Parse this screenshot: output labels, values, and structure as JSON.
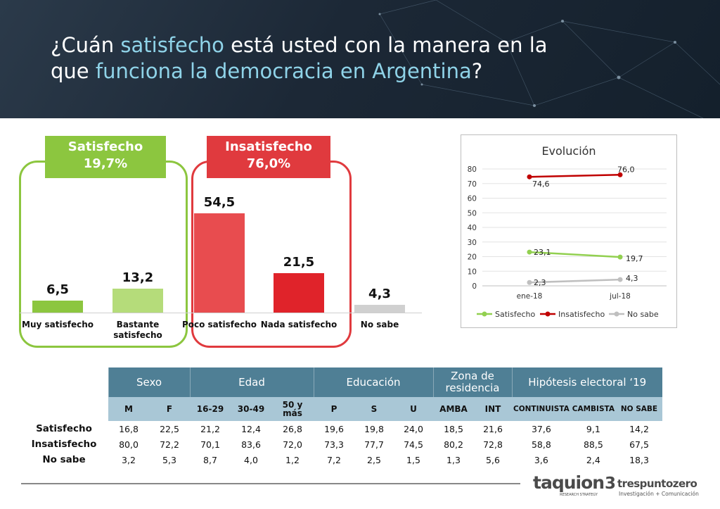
{
  "title": {
    "parts": [
      {
        "text": "¿Cuán ",
        "hl": false
      },
      {
        "text": "satisfecho",
        "hl": true
      },
      {
        "text": " está usted con la manera en la que ",
        "hl": false
      },
      {
        "text": "funciona la democracia en Argentina",
        "hl": true
      },
      {
        "text": "?",
        "hl": false
      }
    ]
  },
  "colors": {
    "green_dark": "#8cc63f",
    "green_light": "#b5dc7a",
    "red_light": "#e84c4f",
    "red_dark": "#e0232a",
    "gray": "#d0d0d0",
    "table_header": "#4f7f95",
    "table_sub": "#a9c7d6",
    "highlight": "#8fd3e8"
  },
  "groups": {
    "satisfecho": {
      "label": "Satisfecho",
      "value": "19,7%"
    },
    "insatisfecho": {
      "label": "Insatisfecho",
      "value": "76,0%"
    }
  },
  "chart_data": [
    {
      "type": "bar",
      "categories": [
        "Muy satisfecho",
        "Bastante satisfecho",
        "Poco satisfecho",
        "Nada satisfecho",
        "No sabe"
      ],
      "values": [
        6.5,
        13.2,
        54.5,
        21.5,
        4.3
      ],
      "value_labels": [
        "6,5",
        "13,2",
        "54,5",
        "21,5",
        "4,3"
      ],
      "colors": [
        "#8cc63f",
        "#b5dc7a",
        "#e84c4f",
        "#e0232a",
        "#d0d0d0"
      ]
    },
    {
      "type": "line",
      "title": "Evolución",
      "x": [
        "ene-18",
        "jul-18"
      ],
      "ylim": [
        0,
        80
      ],
      "yticks": [
        "0",
        "10",
        "20",
        "30",
        "40",
        "50",
        "60",
        "70",
        "80"
      ],
      "grid": true,
      "legend": "bottom",
      "series": [
        {
          "name": "Satisfecho",
          "values": [
            23.1,
            19.7
          ],
          "labels": [
            "23,1",
            "19,7"
          ],
          "color": "#92d050"
        },
        {
          "name": "Insatisfecho",
          "values": [
            74.6,
            76.0
          ],
          "labels": [
            "74,6",
            "76,0"
          ],
          "color": "#c00000"
        },
        {
          "name": "No sabe",
          "values": [
            2.3,
            4.3
          ],
          "labels": [
            "2,3",
            "4,3"
          ],
          "color": "#bfbfbf"
        }
      ]
    },
    {
      "type": "table",
      "groups": [
        "Sexo",
        "Edad",
        "Educación",
        "Zona de residencia",
        "Hipótesis electoral ‘19"
      ],
      "columns": [
        "M",
        "F",
        "16-29",
        "30-49",
        "50 y más",
        "P",
        "S",
        "U",
        "AMBA",
        "INT",
        "CONTINUISTA",
        "CAMBISTA",
        "NO SABE"
      ],
      "rows": [
        {
          "label": "Satisfecho",
          "values": [
            "16,8",
            "22,5",
            "21,2",
            "12,4",
            "26,8",
            "19,6",
            "19,8",
            "24,0",
            "18,5",
            "21,6",
            "37,6",
            "9,1",
            "14,2"
          ]
        },
        {
          "label": "Insatisfecho",
          "values": [
            "80,0",
            "72,2",
            "70,1",
            "83,6",
            "72,0",
            "73,3",
            "77,7",
            "74,5",
            "80,2",
            "72,8",
            "58,8",
            "88,5",
            "67,5"
          ]
        },
        {
          "label": "No sabe",
          "values": [
            "3,2",
            "5,3",
            "8,7",
            "4,0",
            "1,2",
            "7,2",
            "2,5",
            "1,5",
            "1,3",
            "5,6",
            "3,6",
            "2,4",
            "18,3"
          ]
        }
      ]
    }
  ],
  "logos": {
    "taquion": "taquion",
    "taquion_tag": "RESEARCH STRATEGY",
    "tres": "trespuntozero",
    "tres_tag": "Investigación + Comunicación"
  }
}
